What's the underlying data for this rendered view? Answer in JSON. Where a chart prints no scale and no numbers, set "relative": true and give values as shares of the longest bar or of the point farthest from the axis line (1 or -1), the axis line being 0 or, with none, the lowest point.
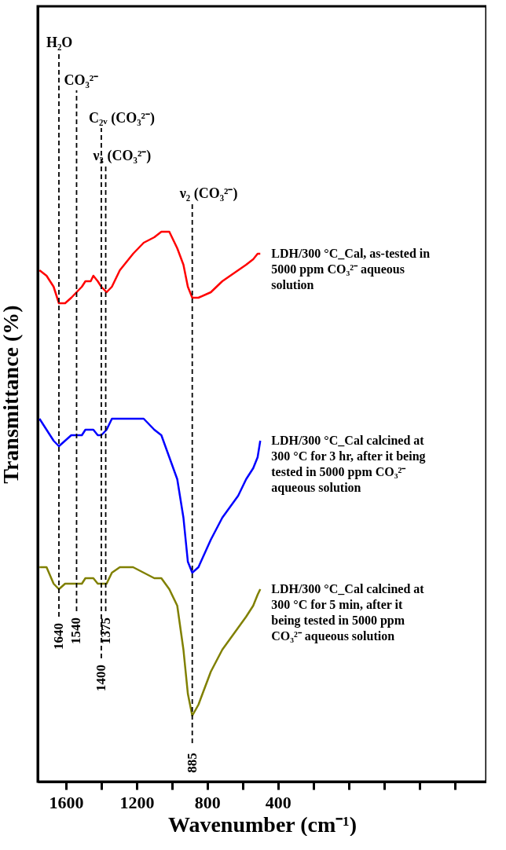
{
  "chart_data": {
    "type": "line",
    "relative": true,
    "xlabel": "Wavenumber (cm⁻¹)",
    "ylabel": "Transmittance (%)",
    "xlim": [
      1760,
      -780
    ],
    "xticks": [
      1600,
      {
        "value": 1400,
        "label": null
      },
      1200,
      {
        "value": 1000,
        "label": null
      },
      800,
      {
        "value": 600,
        "label": null
      },
      400,
      {
        "value": 200,
        "label": null
      },
      {
        "value": 0,
        "label": null
      },
      {
        "value": -200,
        "label": null
      },
      {
        "value": -400,
        "label": null
      },
      {
        "value": -600,
        "label": null
      }
    ],
    "x": [
      1750,
      1710,
      1670,
      1640,
      1605,
      1570,
      1540,
      1510,
      1490,
      1460,
      1445,
      1420,
      1400,
      1370,
      1340,
      1295,
      1220,
      1160,
      1100,
      1060,
      1015,
      970,
      935,
      910,
      885,
      850,
      780,
      715,
      670,
      625,
      580,
      540,
      515,
      500
    ],
    "series": [
      {
        "name": "LDH/300 °C_Cal, as-tested in\n5000 ppm CO₃²⁻ aqueous\nsolution",
        "color": "#ff0000",
        "values": [
          0.93,
          0.92,
          0.9,
          0.87,
          0.87,
          0.88,
          0.89,
          0.9,
          0.91,
          0.91,
          0.92,
          0.91,
          0.9,
          0.89,
          0.9,
          0.93,
          0.96,
          0.98,
          0.99,
          1.0,
          1.0,
          0.97,
          0.94,
          0.9,
          0.88,
          0.88,
          0.89,
          0.91,
          0.92,
          0.93,
          0.94,
          0.95,
          0.96,
          0.96
        ]
      },
      {
        "name": "LDH/300 °C_Cal calcined at\n300 °C for 3 hr, after it being\ntested in 5000 ppm CO₃²⁻\naqueous solution",
        "color": "#0000ff",
        "values": [
          0.66,
          0.64,
          0.62,
          0.61,
          0.62,
          0.63,
          0.63,
          0.63,
          0.64,
          0.64,
          0.64,
          0.63,
          0.63,
          0.64,
          0.66,
          0.66,
          0.66,
          0.66,
          0.64,
          0.63,
          0.59,
          0.55,
          0.48,
          0.4,
          0.38,
          0.39,
          0.44,
          0.48,
          0.5,
          0.52,
          0.55,
          0.57,
          0.59,
          0.62
        ]
      },
      {
        "name": "LDH/300 °C_Cal calcined at\n300 °C for 5 min, after it\nbeing tested in 5000 ppm\nCO₃²⁻ aqueous solution",
        "color": "#808000",
        "values": [
          0.39,
          0.39,
          0.36,
          0.35,
          0.36,
          0.36,
          0.36,
          0.36,
          0.37,
          0.37,
          0.37,
          0.36,
          0.36,
          0.36,
          0.38,
          0.39,
          0.39,
          0.38,
          0.37,
          0.37,
          0.35,
          0.32,
          0.24,
          0.16,
          0.12,
          0.14,
          0.2,
          0.24,
          0.26,
          0.28,
          0.3,
          0.32,
          0.34,
          0.35
        ]
      }
    ],
    "ref_lines": [
      {
        "axis": "x",
        "value": 1640,
        "label": "H₂O",
        "color": "#000000",
        "line_style": "dashed"
      },
      {
        "axis": "x",
        "value": 1540,
        "label": "CO₃²⁻",
        "color": "#000000",
        "line_style": "dashed"
      },
      {
        "axis": "x",
        "value": 1400,
        "label": "C₂ᵥ (CO₃²⁻)",
        "color": "#000000",
        "line_style": "dashed"
      },
      {
        "axis": "x",
        "value": 1375,
        "label": "ν₃ (CO₃²⁻)",
        "color": "#000000",
        "line_style": "dashed"
      },
      {
        "axis": "x",
        "value": 885,
        "label": "ν₂ (CO₃²⁻)",
        "color": "#000000",
        "line_style": "dashed"
      }
    ],
    "annotations": [
      "1640",
      "1540",
      "1400",
      "1375",
      "885"
    ],
    "legend": false,
    "grid": false,
    "marker": "none",
    "line_style": "solid"
  }
}
